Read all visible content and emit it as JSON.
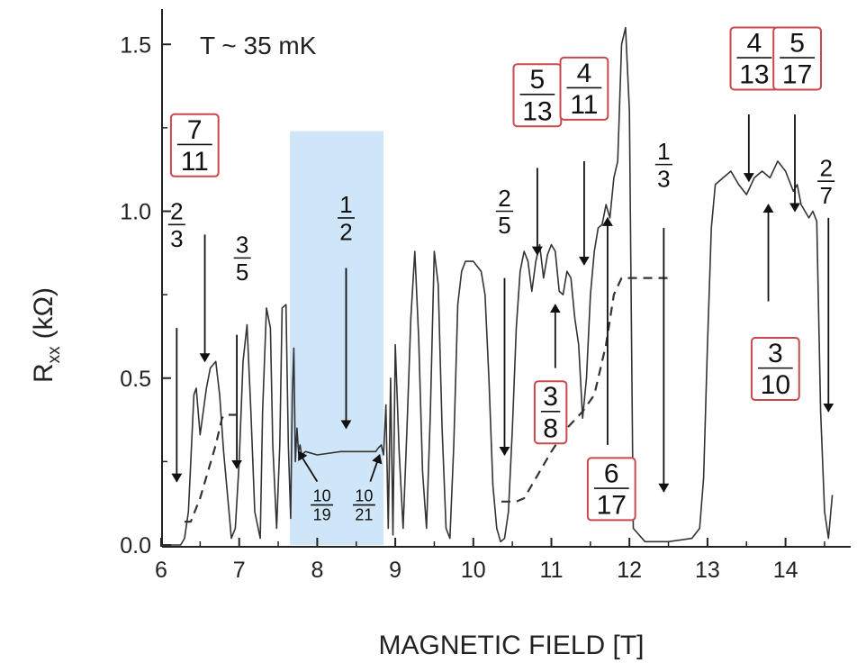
{
  "chart_data": {
    "type": "line",
    "xlabel": "MAGNETIC FIELD [T]",
    "ylabel_main": "R",
    "ylabel_sub": "xx",
    "ylabel_unit": "(kΩ)",
    "annotation_text": "T ~ 35 mK",
    "xlim": [
      6,
      14.6
    ],
    "ylim": [
      0,
      1.6
    ],
    "x_ticks": [
      "6",
      "7",
      "8",
      "9",
      "10",
      "11",
      "12",
      "13",
      "14"
    ],
    "y_ticks": [
      "0.0",
      "0.5",
      "1.0",
      "1.5"
    ],
    "shaded_region": {
      "x_start": 7.65,
      "x_end": 8.85,
      "y_top": 1.24,
      "color": "#cfe6f8"
    },
    "colors": {
      "curve": "#333333",
      "box": "#c8494d",
      "shade": "#cfe6f8"
    },
    "series": [
      {
        "style": "solid",
        "x": [
          6.0,
          6.25,
          6.3,
          6.35,
          6.42,
          6.45,
          6.5,
          6.58,
          6.63,
          6.7,
          6.75,
          6.8,
          6.87,
          6.9,
          6.95,
          7.0,
          7.05,
          7.1,
          7.15,
          7.2,
          7.27,
          7.3,
          7.35,
          7.4,
          7.43,
          7.48,
          7.52,
          7.55,
          7.6,
          7.63,
          7.66,
          7.68,
          7.7,
          7.72,
          7.74,
          7.76,
          7.78,
          7.8,
          7.85,
          8.0,
          8.3,
          8.6,
          8.75,
          8.78,
          8.82,
          8.85,
          8.88,
          8.91,
          8.94,
          8.97,
          9.0,
          9.05,
          9.1,
          9.15,
          9.2,
          9.25,
          9.3,
          9.35,
          9.4,
          9.45,
          9.5,
          9.55,
          9.6,
          9.65,
          9.7,
          9.75,
          9.8,
          9.85,
          9.9,
          10.0,
          10.1,
          10.15,
          10.2,
          10.25,
          10.3,
          10.35,
          10.4,
          10.45,
          10.5,
          10.55,
          10.6,
          10.65,
          10.7,
          10.75,
          10.8,
          10.85,
          10.9,
          10.95,
          11.0,
          11.05,
          11.1,
          11.15,
          11.2,
          11.25,
          11.3,
          11.35,
          11.4,
          11.45,
          11.5,
          11.55,
          11.6,
          11.65,
          11.7,
          11.75,
          11.8,
          11.85,
          11.9,
          11.95,
          12.0,
          12.05,
          12.2,
          12.5,
          12.8,
          12.9,
          12.95,
          13.0,
          13.05,
          13.1,
          13.2,
          13.3,
          13.4,
          13.5,
          13.6,
          13.7,
          13.8,
          13.9,
          14.0,
          14.1,
          14.15,
          14.2,
          14.3,
          14.35,
          14.4,
          14.45,
          14.5,
          14.55,
          14.6
        ],
        "values": [
          0.0,
          0.0,
          0.02,
          0.1,
          0.45,
          0.47,
          0.33,
          0.47,
          0.53,
          0.55,
          0.45,
          0.28,
          0.1,
          0.02,
          0.05,
          0.25,
          0.55,
          0.66,
          0.4,
          0.1,
          0.02,
          0.4,
          0.71,
          0.65,
          0.3,
          0.05,
          0.3,
          0.71,
          0.72,
          0.3,
          0.08,
          0.45,
          0.59,
          0.25,
          0.35,
          0.28,
          0.3,
          0.27,
          0.28,
          0.27,
          0.28,
          0.28,
          0.28,
          0.29,
          0.3,
          0.27,
          0.42,
          0.05,
          0.5,
          0.03,
          0.6,
          0.28,
          0.05,
          0.35,
          0.68,
          0.88,
          0.62,
          0.22,
          0.05,
          0.4,
          0.88,
          0.78,
          0.35,
          0.05,
          0.02,
          0.3,
          0.72,
          0.82,
          0.85,
          0.85,
          0.82,
          0.75,
          0.5,
          0.18,
          0.05,
          0.01,
          0.02,
          0.1,
          0.35,
          0.65,
          0.82,
          0.88,
          0.85,
          0.76,
          0.85,
          0.9,
          0.8,
          0.87,
          0.9,
          0.88,
          0.76,
          0.75,
          0.82,
          0.8,
          0.68,
          0.6,
          0.38,
          0.5,
          0.75,
          0.88,
          0.95,
          0.96,
          1.02,
          0.98,
          1.1,
          1.15,
          1.5,
          1.55,
          1.3,
          0.05,
          0.01,
          0.01,
          0.02,
          0.05,
          0.2,
          0.6,
          0.95,
          1.08,
          1.1,
          1.12,
          1.08,
          1.05,
          1.1,
          1.12,
          1.1,
          1.15,
          1.12,
          1.06,
          1.08,
          1.02,
          0.98,
          1.0,
          0.97,
          0.4,
          0.1,
          0.02,
          0.15
        ]
      },
      {
        "style": "dashed",
        "x": [
          6.3,
          6.38,
          6.5,
          6.6,
          6.7,
          6.78,
          6.82,
          6.88,
          6.96
        ],
        "values": [
          0.07,
          0.07,
          0.14,
          0.22,
          0.3,
          0.38,
          0.39,
          0.39,
          0.39
        ]
      },
      {
        "style": "dashed",
        "x": [
          10.36,
          10.55,
          10.65,
          10.8,
          11.0,
          11.2,
          11.4,
          11.55,
          11.7,
          11.8,
          11.9,
          12.0,
          12.2,
          12.35,
          12.55
        ],
        "values": [
          0.13,
          0.13,
          0.14,
          0.2,
          0.28,
          0.35,
          0.4,
          0.45,
          0.6,
          0.75,
          0.8,
          0.8,
          0.8,
          0.8,
          0.8
        ]
      }
    ],
    "labels": [
      {
        "num": "2",
        "den": "3",
        "boxed": false,
        "x": 6.2,
        "y": 0.96,
        "size": "medium"
      },
      {
        "num": "7",
        "den": "11",
        "boxed": true,
        "x": 6.43,
        "y": 1.2,
        "size": "large"
      },
      {
        "num": "3",
        "den": "5",
        "boxed": false,
        "x": 7.04,
        "y": 0.86,
        "size": "medium"
      },
      {
        "num": "1",
        "den": "2",
        "boxed": false,
        "x": 8.37,
        "y": 0.98,
        "size": "medium"
      },
      {
        "num": "10",
        "den": "19",
        "boxed": false,
        "x": 8.06,
        "y": 0.12,
        "size": "small"
      },
      {
        "num": "10",
        "den": "21",
        "boxed": false,
        "x": 8.6,
        "y": 0.12,
        "size": "small"
      },
      {
        "num": "2",
        "den": "5",
        "boxed": false,
        "x": 10.4,
        "y": 1.0,
        "size": "medium"
      },
      {
        "num": "5",
        "den": "13",
        "boxed": true,
        "x": 10.82,
        "y": 1.35,
        "size": "large"
      },
      {
        "num": "4",
        "den": "11",
        "boxed": true,
        "x": 11.42,
        "y": 1.37,
        "size": "large"
      },
      {
        "num": "3",
        "den": "8",
        "boxed": true,
        "x": 10.99,
        "y": 0.4,
        "size": "large"
      },
      {
        "num": "6",
        "den": "17",
        "boxed": true,
        "x": 11.77,
        "y": 0.17,
        "size": "large"
      },
      {
        "num": "1",
        "den": "3",
        "boxed": false,
        "x": 12.44,
        "y": 1.14,
        "size": "medium"
      },
      {
        "num": "4",
        "den": "13",
        "boxed": true,
        "x": 13.6,
        "y": 1.46,
        "size": "large"
      },
      {
        "num": "5",
        "den": "17",
        "boxed": true,
        "x": 14.15,
        "y": 1.46,
        "size": "large"
      },
      {
        "num": "3",
        "den": "10",
        "boxed": true,
        "x": 13.87,
        "y": 0.53,
        "size": "large"
      },
      {
        "num": "2",
        "den": "7",
        "boxed": false,
        "x": 14.52,
        "y": 1.09,
        "size": "medium"
      }
    ],
    "arrows": [
      {
        "x1": 6.2,
        "y1": 0.65,
        "x2": 6.2,
        "y2": 0.19
      },
      {
        "x1": 6.56,
        "y1": 0.93,
        "x2": 6.56,
        "y2": 0.55
      },
      {
        "x1": 6.97,
        "y1": 0.63,
        "x2": 6.97,
        "y2": 0.23
      },
      {
        "x1": 8.37,
        "y1": 0.83,
        "x2": 8.37,
        "y2": 0.35
      },
      {
        "x1": 8.0,
        "y1": 0.19,
        "x2": 7.76,
        "y2": 0.28
      },
      {
        "x1": 8.68,
        "y1": 0.19,
        "x2": 8.8,
        "y2": 0.27
      },
      {
        "x1": 10.4,
        "y1": 0.8,
        "x2": 10.4,
        "y2": 0.27
      },
      {
        "x1": 10.82,
        "y1": 1.13,
        "x2": 10.82,
        "y2": 0.87
      },
      {
        "x1": 11.42,
        "y1": 1.15,
        "x2": 11.42,
        "y2": 0.84
      },
      {
        "x1": 11.05,
        "y1": 0.53,
        "x2": 11.05,
        "y2": 0.72
      },
      {
        "x1": 11.72,
        "y1": 0.3,
        "x2": 11.72,
        "y2": 0.98
      },
      {
        "x1": 12.44,
        "y1": 0.95,
        "x2": 12.44,
        "y2": 0.16
      },
      {
        "x1": 13.53,
        "y1": 1.29,
        "x2": 13.53,
        "y2": 1.09
      },
      {
        "x1": 14.12,
        "y1": 1.29,
        "x2": 14.12,
        "y2": 1.0
      },
      {
        "x1": 13.78,
        "y1": 0.73,
        "x2": 13.78,
        "y2": 1.02
      },
      {
        "x1": 14.55,
        "y1": 0.98,
        "x2": 14.55,
        "y2": 0.4
      }
    ]
  }
}
